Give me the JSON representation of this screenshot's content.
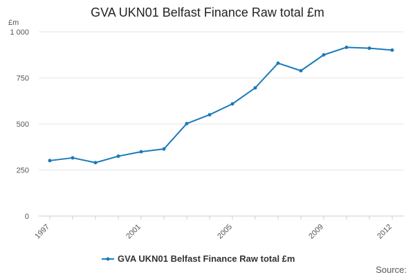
{
  "chart_data": {
    "type": "line",
    "title": "GVA UKN01 Belfast Finance Raw total £m",
    "ylabel": "£m",
    "xlabel": "",
    "ylim": [
      0,
      1000
    ],
    "y_ticks": [
      0,
      250,
      500,
      750,
      1000
    ],
    "y_tick_labels": [
      "0",
      "250",
      "500",
      "750",
      "1 000"
    ],
    "x_tick_labels": [
      "1997",
      "2001",
      "2005",
      "2009",
      "2012"
    ],
    "x": [
      1997,
      1998,
      1999,
      2000,
      2001,
      2002,
      2003,
      2004,
      2005,
      2006,
      2007,
      2008,
      2009,
      2010,
      2011,
      2012
    ],
    "series": [
      {
        "name": "GVA UKN01 Belfast Finance Raw total £m",
        "color": "#1a7ab8",
        "values": [
          301,
          316,
          290,
          325,
          349,
          364,
          502,
          550,
          609,
          696,
          830,
          789,
          875,
          916,
          911,
          901
        ]
      }
    ],
    "grid": true,
    "legend_position": "bottom"
  },
  "footer": {
    "source_label": "Source:"
  }
}
